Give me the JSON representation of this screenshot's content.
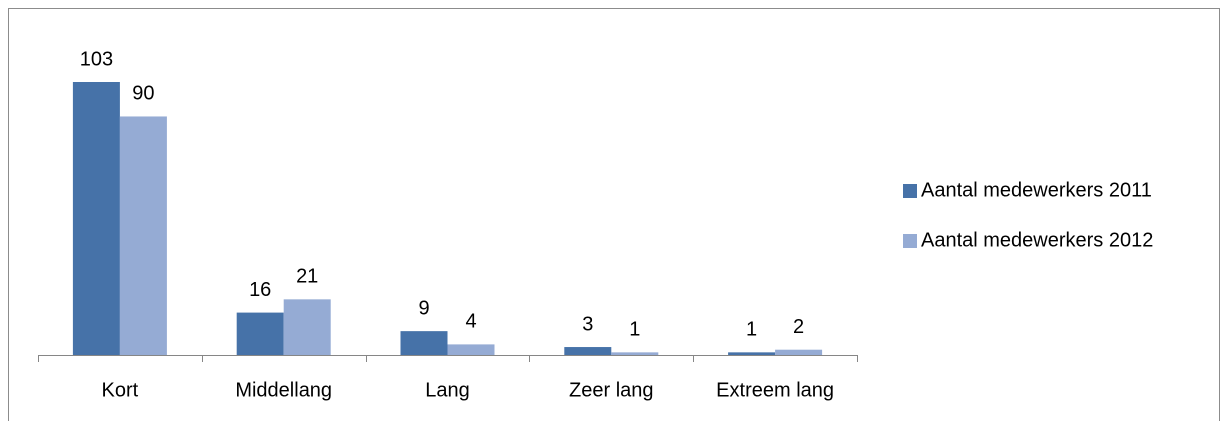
{
  "chart_data": {
    "type": "bar",
    "categories": [
      "Kort",
      "Middellang",
      "Lang",
      "Zeer lang",
      "Extreem lang"
    ],
    "series": [
      {
        "name": "Aantal medewerkers 2011",
        "color": "#4672a8",
        "values": [
          103,
          16,
          9,
          3,
          1
        ]
      },
      {
        "name": "Aantal medewerkers 2012",
        "color": "#95abd4",
        "values": [
          90,
          21,
          4,
          1,
          2
        ]
      }
    ],
    "legend": "right",
    "data_labels": true
  }
}
